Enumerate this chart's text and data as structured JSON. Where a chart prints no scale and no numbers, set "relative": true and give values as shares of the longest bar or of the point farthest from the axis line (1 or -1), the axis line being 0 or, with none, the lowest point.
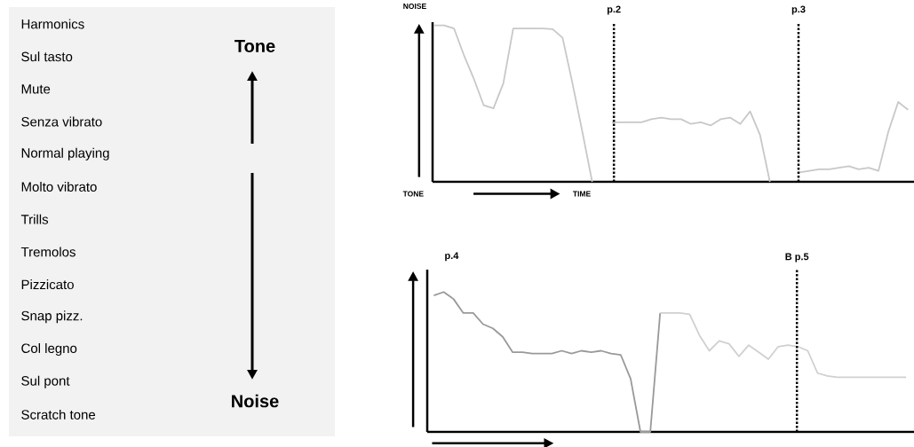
{
  "chart_data": [
    {
      "type": "other",
      "categories": [
        "Harmonics",
        "Sul tasto",
        "Mute",
        "Senza vibrato",
        "Normal playing",
        "Molto vibrato",
        "Trills",
        "Tremolos",
        "Pizzicato",
        "Snap pizz.",
        "Col legno",
        "Sul pont",
        "Scratch tone"
      ],
      "annotations": [
        "Tone",
        "Noise"
      ]
    },
    {
      "type": "line",
      "relative": true,
      "ylabel": "NOISE",
      "xlabel": "TIME",
      "annotations": [
        "TONE",
        "p.2",
        "p.3"
      ],
      "categories": [
        null,
        null,
        null,
        null,
        null,
        null,
        null,
        null,
        null,
        null,
        null,
        null,
        null,
        null,
        null,
        null,
        null,
        null,
        null,
        null,
        null,
        null,
        null,
        null,
        null,
        null,
        null,
        null,
        null,
        null,
        null,
        null,
        null,
        null,
        null,
        null,
        null,
        null,
        null,
        null,
        null,
        null,
        null,
        null,
        null,
        null,
        null,
        null,
        null
      ],
      "series": [
        {
          "color": "#c8c8c8",
          "values": [
            1.0,
            1.0,
            0.98,
            0.81,
            0.66,
            0.49,
            0.47,
            0.63,
            0.98,
            0.98,
            0.98,
            0.98,
            0.975,
            0.92,
            0.63,
            0.32,
            0.0,
            null,
            null,
            null,
            null,
            null,
            null,
            null,
            null,
            null,
            null,
            null,
            null,
            null,
            null,
            null,
            null,
            null,
            null,
            null,
            null,
            null,
            null,
            null,
            null,
            null,
            null,
            null,
            null,
            null,
            null,
            null,
            null
          ]
        },
        {
          "color": "#c8c8c8",
          "values": [
            null,
            null,
            null,
            null,
            null,
            null,
            null,
            null,
            null,
            null,
            null,
            null,
            null,
            null,
            null,
            null,
            null,
            null,
            0.38,
            0.38,
            0.38,
            0.38,
            0.4,
            0.41,
            0.4,
            0.4,
            0.37,
            0.38,
            0.36,
            0.4,
            0.41,
            0.37,
            0.45,
            0.3,
            0.0,
            null,
            null,
            null,
            null,
            null,
            null,
            null,
            null,
            null,
            null,
            null,
            null,
            null,
            null
          ]
        },
        {
          "color": "#c8c8c8",
          "values": [
            null,
            null,
            null,
            null,
            null,
            null,
            null,
            null,
            null,
            null,
            null,
            null,
            null,
            null,
            null,
            null,
            null,
            null,
            null,
            null,
            null,
            null,
            null,
            null,
            null,
            null,
            null,
            null,
            null,
            null,
            null,
            null,
            null,
            null,
            null,
            null,
            null,
            0.06,
            0.07,
            0.08,
            0.08,
            0.09,
            0.1,
            0.08,
            0.09,
            0.07,
            0.32,
            0.51,
            0.46
          ]
        }
      ]
    },
    {
      "type": "line",
      "relative": true,
      "annotations": [
        "p.4",
        "B  p.5"
      ],
      "categories": [
        null,
        null,
        null,
        null,
        null,
        null,
        null,
        null,
        null,
        null,
        null,
        null,
        null,
        null,
        null,
        null,
        null,
        null,
        null,
        null,
        null,
        null,
        null,
        null,
        null,
        null,
        null,
        null,
        null,
        null,
        null,
        null,
        null,
        null,
        null,
        null,
        null,
        null,
        null,
        null,
        null,
        null,
        null,
        null,
        null,
        null,
        null,
        null,
        null
      ],
      "series": [
        {
          "color": "#999999",
          "values": [
            0.976,
            1.0,
            0.95,
            0.85,
            0.85,
            0.77,
            0.74,
            0.68,
            0.57,
            0.57,
            0.56,
            0.56,
            0.56,
            0.58,
            0.56,
            0.58,
            0.57,
            0.58,
            0.56,
            0.55,
            0.38,
            0.0,
            0.0,
            0.85,
            null,
            null,
            null,
            null,
            null,
            null,
            null,
            null,
            null,
            null,
            null,
            null,
            null,
            null,
            null,
            null,
            null,
            null,
            null,
            null,
            null,
            null,
            null,
            null,
            null
          ]
        },
        {
          "color": "#d0d0d0",
          "values": [
            null,
            null,
            null,
            null,
            null,
            null,
            null,
            null,
            null,
            null,
            null,
            null,
            null,
            null,
            null,
            null,
            null,
            null,
            null,
            null,
            null,
            null,
            null,
            0.85,
            0.85,
            0.85,
            0.84,
            0.69,
            0.58,
            0.65,
            0.63,
            0.54,
            0.62,
            0.57,
            0.52,
            0.61,
            0.62,
            0.61,
            0.58,
            0.42,
            0.4,
            0.39,
            0.39,
            0.39,
            0.39,
            0.39,
            0.39,
            0.39,
            0.39
          ]
        }
      ]
    }
  ]
}
